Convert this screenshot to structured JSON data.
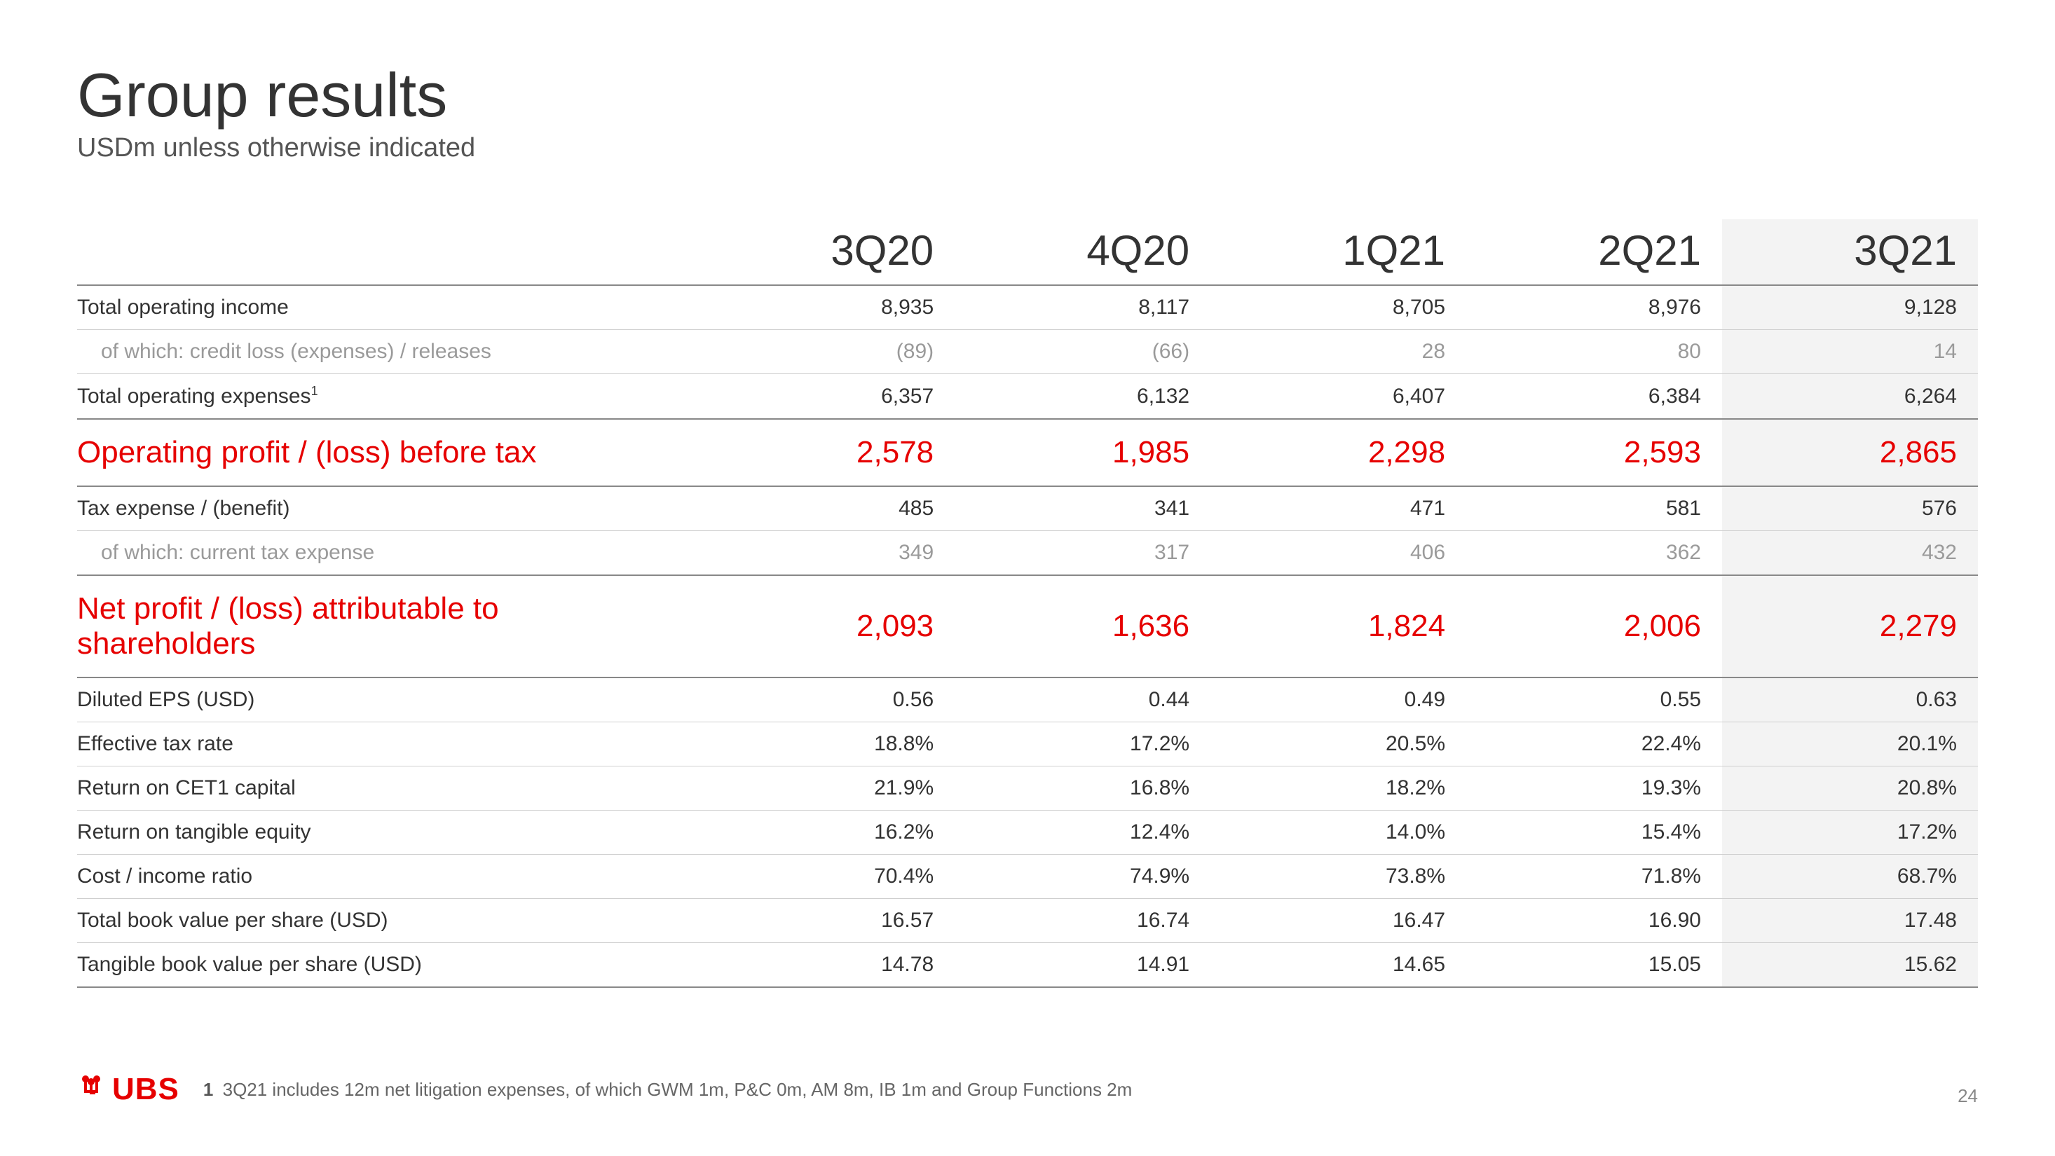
{
  "title": "Group results",
  "subtitle": "USDm unless otherwise indicated",
  "columns": [
    "3Q20",
    "4Q20",
    "1Q21",
    "2Q21",
    "3Q21"
  ],
  "colors": {
    "highlight_text": "#e60000",
    "brand_red": "#e60000",
    "text": "#333333",
    "sub_text": "#9a9a9a",
    "highlight_col_bg": "#f3f3f3",
    "border_heavy": "#888888",
    "border_light": "#cfcfcf",
    "background": "#ffffff"
  },
  "typography": {
    "title_fontsize": 88,
    "subtitle_fontsize": 38,
    "col_header_fontsize": 60,
    "body_fontsize": 30,
    "highlight_fontsize": 44,
    "footnote_fontsize": 26
  },
  "rows": [
    {
      "label": "Total operating income",
      "values": [
        "8,935",
        "8,117",
        "8,705",
        "8,976",
        "9,128"
      ],
      "type": "normal"
    },
    {
      "label": "of which: credit loss (expenses) / releases",
      "values": [
        "(89)",
        "(66)",
        "28",
        "80",
        "14"
      ],
      "type": "sub"
    },
    {
      "label": "Total operating expenses",
      "sup": "1",
      "values": [
        "6,357",
        "6,132",
        "6,407",
        "6,384",
        "6,264"
      ],
      "type": "pre-highlight"
    },
    {
      "label": "Operating profit / (loss) before tax",
      "values": [
        "2,578",
        "1,985",
        "2,298",
        "2,593",
        "2,865"
      ],
      "type": "highlight"
    },
    {
      "label": "Tax expense / (benefit)",
      "values": [
        "485",
        "341",
        "471",
        "581",
        "576"
      ],
      "type": "after-highlight"
    },
    {
      "label": "of which: current tax expense",
      "values": [
        "349",
        "317",
        "406",
        "362",
        "432"
      ],
      "type": "sub pre-highlight"
    },
    {
      "label": "Net profit / (loss) attributable to shareholders",
      "values": [
        "2,093",
        "1,636",
        "1,824",
        "2,006",
        "2,279"
      ],
      "type": "highlight section-gap"
    },
    {
      "label": "Diluted EPS (USD)",
      "values": [
        "0.56",
        "0.44",
        "0.49",
        "0.55",
        "0.63"
      ],
      "type": "after-highlight"
    },
    {
      "label": "Effective tax rate",
      "values": [
        "18.8%",
        "17.2%",
        "20.5%",
        "22.4%",
        "20.1%"
      ],
      "type": "normal"
    },
    {
      "label": "Return on CET1 capital",
      "values": [
        "21.9%",
        "16.8%",
        "18.2%",
        "19.3%",
        "20.8%"
      ],
      "type": "normal"
    },
    {
      "label": "Return on tangible equity",
      "values": [
        "16.2%",
        "12.4%",
        "14.0%",
        "15.4%",
        "17.2%"
      ],
      "type": "normal"
    },
    {
      "label": "Cost / income ratio",
      "values": [
        "70.4%",
        "74.9%",
        "73.8%",
        "71.8%",
        "68.7%"
      ],
      "type": "normal"
    },
    {
      "label": "Total book value per share (USD)",
      "values": [
        "16.57",
        "16.74",
        "16.47",
        "16.90",
        "17.48"
      ],
      "type": "normal"
    },
    {
      "label": "Tangible book value per share (USD)",
      "values": [
        "14.78",
        "14.91",
        "14.65",
        "15.05",
        "15.62"
      ],
      "type": "last-data"
    }
  ],
  "logo": {
    "brand": "UBS"
  },
  "footnote": {
    "num": "1",
    "text": "3Q21 includes 12m net litigation expenses, of which GWM 1m, P&C 0m, AM 8m, IB 1m and Group Functions 2m"
  },
  "page_number": "24"
}
